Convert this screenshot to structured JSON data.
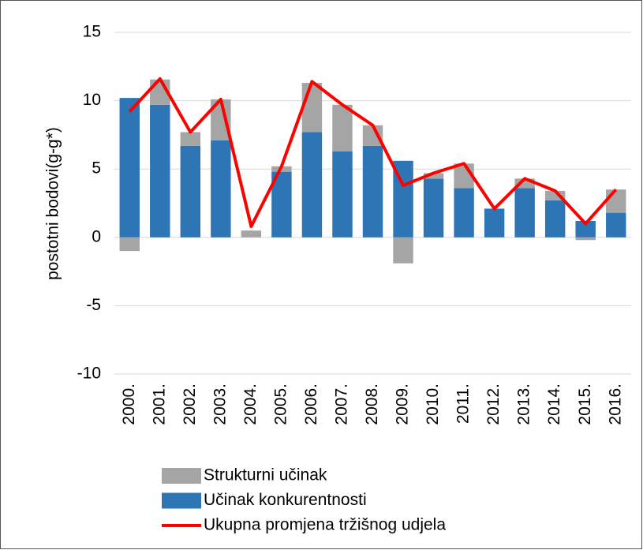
{
  "chart_data": {
    "type": "bar",
    "stacked": true,
    "y_label": "postotni bodovi(g-g*)",
    "categories": [
      "2000.",
      "2001.",
      "2002.",
      "2003.",
      "2004.",
      "2005.",
      "2006.",
      "2007.",
      "2008.",
      "2009.",
      "2010.",
      "2011.",
      "2012.",
      "2013.",
      "2014.",
      "2015.",
      "2016."
    ],
    "series": [
      {
        "name": "Strukturni učinak",
        "type": "bar",
        "color": "#a5a5a5",
        "values": [
          -1.0,
          1.85,
          1.0,
          3.0,
          0.5,
          0.4,
          3.6,
          3.4,
          1.5,
          -1.9,
          0.4,
          1.8,
          0,
          0.7,
          0.7,
          -0.2,
          1.7
        ]
      },
      {
        "name": "Učinak konkurentnosti",
        "type": "bar",
        "color": "#2e75b6",
        "values": [
          10.2,
          9.7,
          6.7,
          7.1,
          0,
          4.8,
          7.7,
          6.3,
          6.7,
          5.6,
          4.3,
          3.6,
          2.1,
          3.6,
          2.7,
          1.2,
          1.8
        ]
      },
      {
        "name": "Ukupna promjena tržišnog udjela",
        "type": "line",
        "color": "#ff0000",
        "values": [
          9.2,
          11.6,
          7.7,
          10.1,
          0.8,
          5.2,
          11.4,
          9.7,
          8.2,
          3.8,
          4.7,
          5.4,
          2.1,
          4.3,
          3.4,
          1.0,
          3.5
        ]
      }
    ],
    "ylim": [
      -10,
      15
    ],
    "yticks": [
      -10,
      -5,
      0,
      5,
      10,
      15
    ],
    "grid": true
  }
}
